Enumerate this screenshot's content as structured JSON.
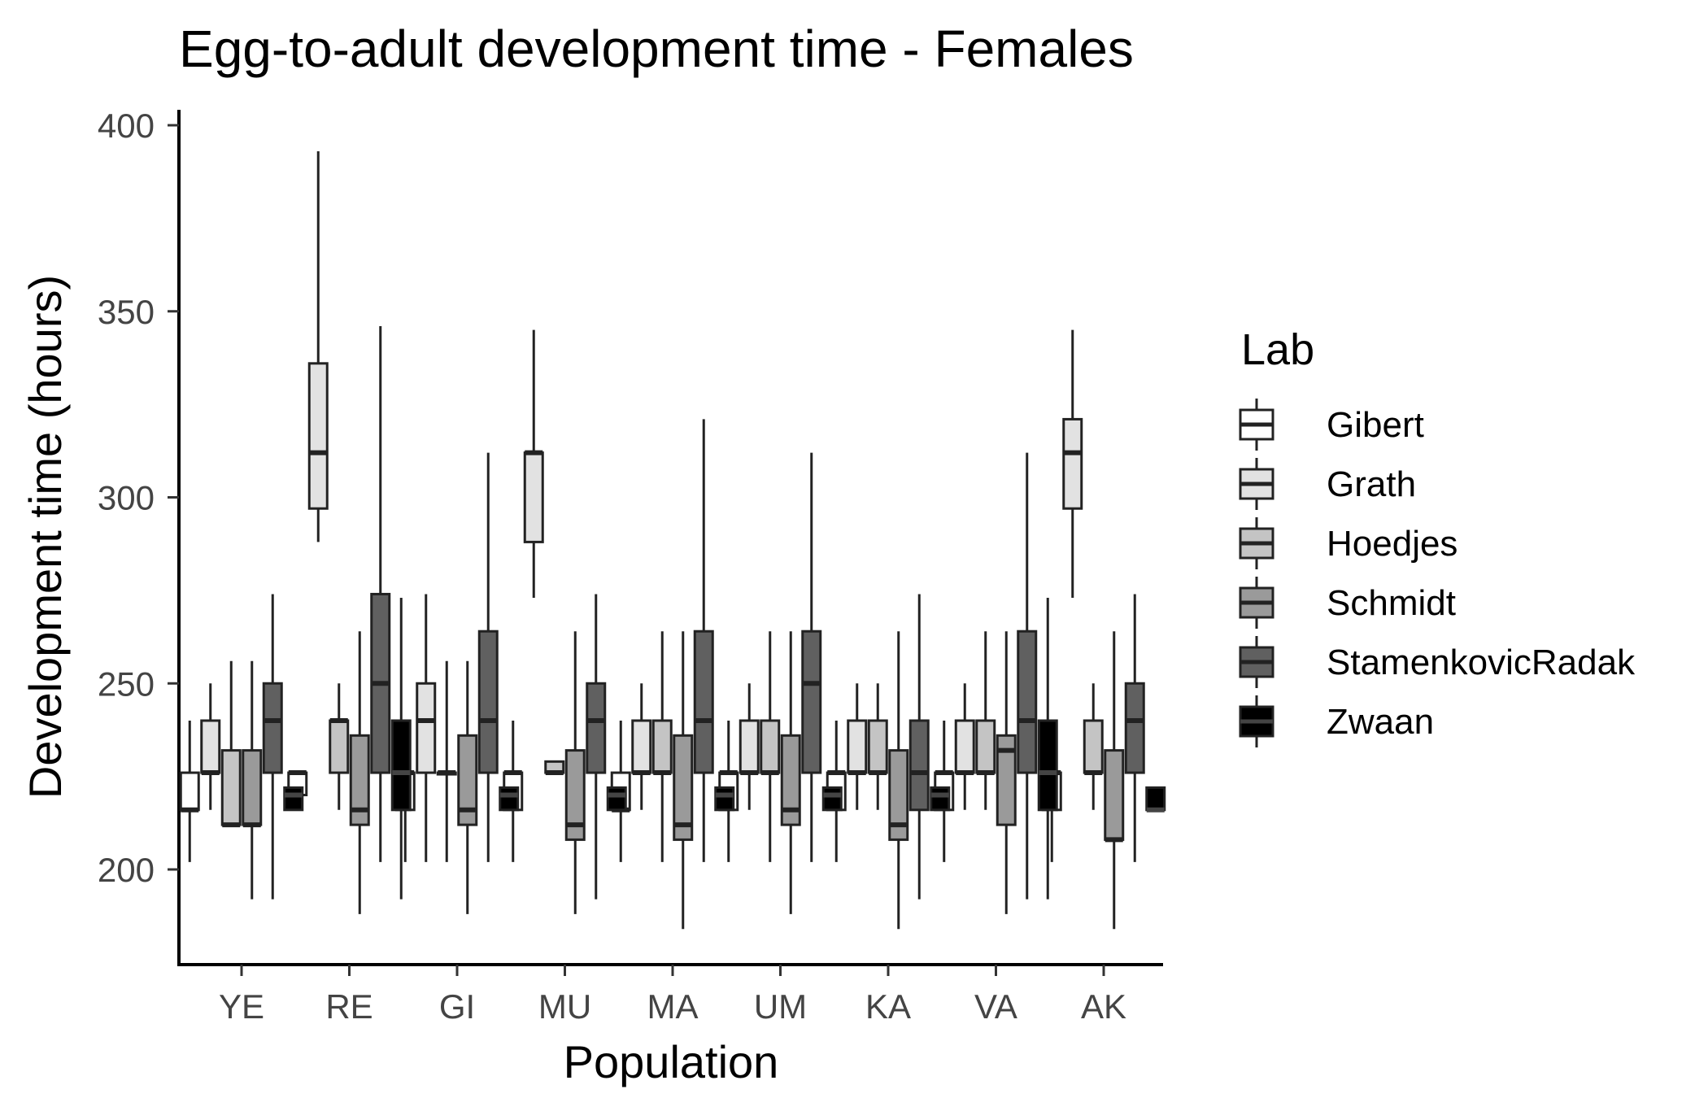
{
  "chart_data": {
    "type": "boxplot",
    "title": "Egg-to-adult development time - Females",
    "xlabel": "Population",
    "ylabel": "Development time (hours)",
    "ylim": [
      174,
      404
    ],
    "yticks": [
      200,
      250,
      300,
      350,
      400
    ],
    "grid": false,
    "legend": {
      "title": "Lab",
      "placement": "right",
      "entries": [
        {
          "name": "Gibert",
          "color": "#ffffff"
        },
        {
          "name": "Grath",
          "color": "#e2e2e2"
        },
        {
          "name": "Hoedjes",
          "color": "#c4c4c4"
        },
        {
          "name": "Schmidt",
          "color": "#9a9a9a"
        },
        {
          "name": "StamenkovicRadak",
          "color": "#606060"
        },
        {
          "name": "Zwaan",
          "color": "#000000"
        }
      ]
    },
    "categories": [
      "YE",
      "RE",
      "GI",
      "MU",
      "MA",
      "UM",
      "KA",
      "VA",
      "AK"
    ],
    "series": [
      {
        "name": "Gibert",
        "boxes": [
          [
            202,
            216,
            216,
            226,
            240
          ],
          [
            220,
            220,
            226,
            226,
            226
          ],
          [
            202,
            216,
            226,
            226,
            240
          ],
          [
            202,
            216,
            226,
            226,
            240
          ],
          [
            202,
            216,
            216,
            226,
            240
          ],
          [
            202,
            216,
            226,
            226,
            240
          ],
          [
            202,
            216,
            226,
            226,
            240
          ],
          [
            202,
            216,
            226,
            226,
            240
          ],
          [
            202,
            216,
            226,
            226,
            240
          ]
        ]
      },
      {
        "name": "Grath",
        "boxes": [
          [
            216,
            226,
            226,
            240,
            250
          ],
          [
            288,
            297,
            312,
            336,
            393
          ],
          [
            202,
            226,
            240,
            250,
            274
          ],
          [
            273,
            288,
            312,
            312,
            345
          ],
          [
            216,
            226,
            226,
            240,
            250
          ],
          [
            216,
            226,
            226,
            240,
            250
          ],
          [
            216,
            226,
            226,
            240,
            250
          ],
          [
            216,
            226,
            226,
            240,
            250
          ],
          [
            273,
            297,
            312,
            321,
            345
          ]
        ]
      },
      {
        "name": "Hoedjes",
        "boxes": [
          [
            212,
            212,
            212,
            232,
            256
          ],
          [
            216,
            226,
            240,
            240,
            250
          ],
          [
            202,
            226,
            226,
            226,
            256
          ],
          [
            226,
            226,
            226,
            229,
            229
          ],
          [
            202,
            226,
            226,
            240,
            264
          ],
          [
            202,
            226,
            226,
            240,
            264
          ],
          [
            216,
            226,
            226,
            240,
            250
          ],
          [
            216,
            226,
            226,
            240,
            264
          ],
          [
            216,
            226,
            226,
            240,
            250
          ]
        ]
      },
      {
        "name": "Schmidt",
        "boxes": [
          [
            192,
            212,
            212,
            232,
            256
          ],
          [
            188,
            212,
            216,
            236,
            264
          ],
          [
            188,
            212,
            216,
            236,
            256
          ],
          [
            188,
            208,
            212,
            232,
            264
          ],
          [
            184,
            208,
            212,
            236,
            264
          ],
          [
            188,
            212,
            216,
            236,
            264
          ],
          [
            184,
            208,
            212,
            232,
            264
          ],
          [
            188,
            212,
            232,
            236,
            264
          ],
          [
            184,
            208,
            208,
            232,
            264
          ]
        ]
      },
      {
        "name": "StamenkovicRadak",
        "boxes": [
          [
            192,
            226,
            240,
            250,
            274
          ],
          [
            202,
            226,
            250,
            274,
            346
          ],
          [
            202,
            226,
            240,
            264,
            312
          ],
          [
            192,
            226,
            240,
            250,
            274
          ],
          [
            202,
            226,
            240,
            264,
            321
          ],
          [
            202,
            226,
            250,
            264,
            312
          ],
          [
            192,
            216,
            226,
            240,
            274
          ],
          [
            192,
            226,
            240,
            264,
            312
          ],
          [
            202,
            226,
            240,
            250,
            274
          ]
        ]
      },
      {
        "name": "Zwaan",
        "boxes": [
          [
            216,
            216,
            220,
            222,
            222
          ],
          [
            192,
            216,
            226,
            240,
            273
          ],
          [
            216,
            216,
            220,
            222,
            222
          ],
          [
            216,
            216,
            220,
            222,
            222
          ],
          [
            216,
            216,
            220,
            222,
            222
          ],
          [
            216,
            216,
            220,
            222,
            222
          ],
          [
            216,
            216,
            220,
            222,
            222
          ],
          [
            192,
            216,
            226,
            240,
            273
          ],
          [
            216,
            216,
            216,
            222,
            222
          ]
        ]
      }
    ]
  }
}
